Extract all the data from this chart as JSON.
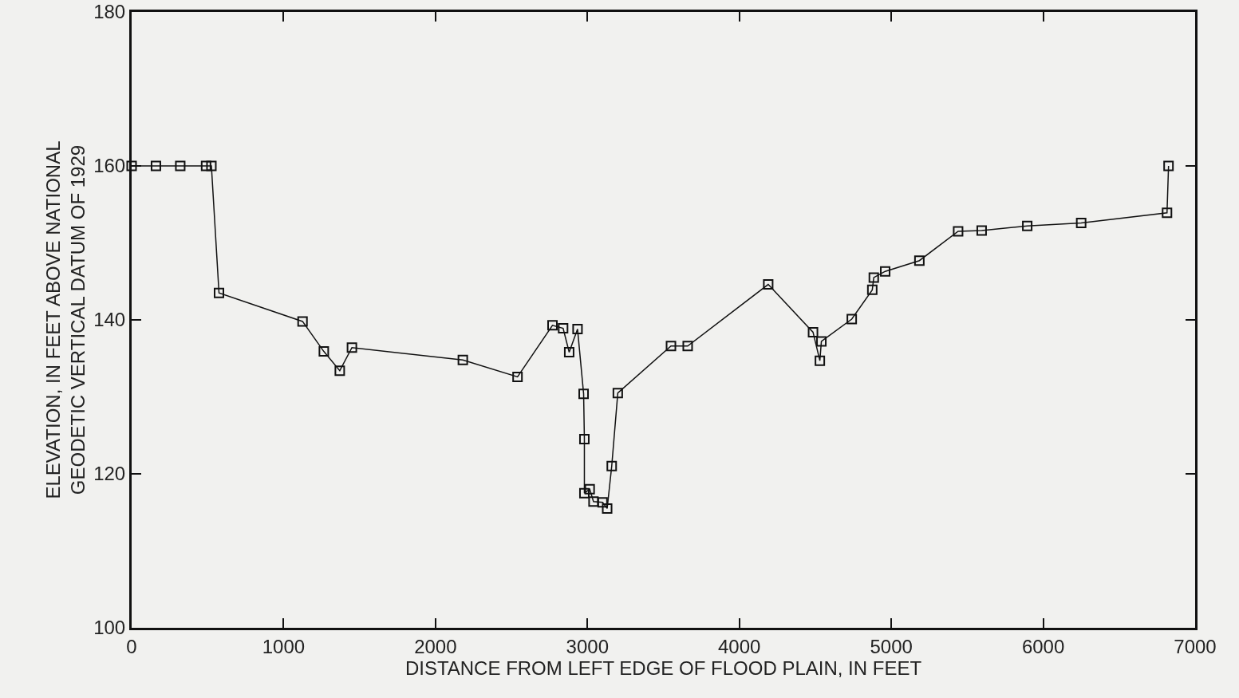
{
  "chart_data": {
    "type": "line",
    "xlabel": "DISTANCE FROM LEFT EDGE OF FLOOD PLAIN, IN FEET",
    "ylabel": "ELEVATION, IN FEET ABOVE NATIONAL\nGEODETIC VERTICAL DATUM OF 1929",
    "x": [
      0,
      160,
      320,
      490,
      525,
      575,
      1125,
      1265,
      1370,
      1450,
      2180,
      2540,
      2770,
      2840,
      2880,
      2935,
      2975,
      2980,
      2980,
      3015,
      3040,
      3100,
      3130,
      3160,
      3200,
      3550,
      3660,
      4190,
      4485,
      4530,
      4540,
      4740,
      4875,
      4885,
      4960,
      5185,
      5440,
      5595,
      5895,
      6250,
      6815,
      6825
    ],
    "series": [
      {
        "color": "#111111",
        "values": [
          160,
          160,
          160,
          160,
          160,
          143.5,
          139.8,
          135.9,
          133.4,
          136.4,
          134.8,
          132.6,
          139.3,
          138.9,
          135.8,
          138.8,
          130.4,
          124.5,
          117.5,
          118,
          116.4,
          116.3,
          115.5,
          121,
          130.5,
          136.6,
          136.6,
          144.6,
          138.4,
          134.7,
          137.2,
          140.1,
          143.9,
          145.5,
          146.3,
          147.7,
          151.5,
          151.6,
          152.2,
          152.6,
          153.9,
          160
        ]
      }
    ],
    "xlim": [
      0,
      7000
    ],
    "xticks": [
      0,
      1000,
      2000,
      3000,
      4000,
      5000,
      6000,
      7000
    ],
    "ylim": [
      100,
      180
    ],
    "yticks": [
      100,
      120,
      140,
      160,
      180
    ],
    "grid": false,
    "marker": "square",
    "line_style": "solid"
  }
}
